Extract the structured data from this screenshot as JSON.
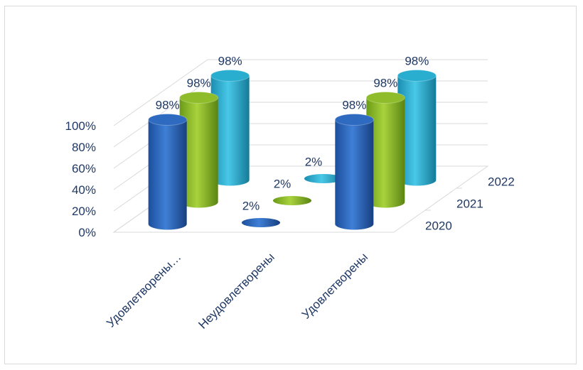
{
  "chart_data": {
    "type": "bar",
    "style": "3d-cylinder",
    "categories": [
      "Удовлетворены…",
      "Неудовлетворены",
      "Удовлетворены"
    ],
    "series": [
      {
        "name": "2020",
        "values": [
          98,
          2,
          98
        ],
        "labels": [
          "98%",
          "2%",
          "98%"
        ],
        "color": "#2e6ac0"
      },
      {
        "name": "2021",
        "values": [
          98,
          2,
          98
        ],
        "labels": [
          "98%",
          "2%",
          "98%"
        ],
        "color": "#8fbc2b"
      },
      {
        "name": "2022",
        "values": [
          98,
          2,
          98
        ],
        "labels": [
          "98%",
          "2%",
          "98%"
        ],
        "color": "#2aaed0"
      }
    ],
    "y_ticks": [
      "0%",
      "20%",
      "40%",
      "60%",
      "80%",
      "100%"
    ],
    "ylim": [
      0,
      100
    ],
    "grid": true,
    "title": "",
    "xlabel": "",
    "ylabel": ""
  }
}
